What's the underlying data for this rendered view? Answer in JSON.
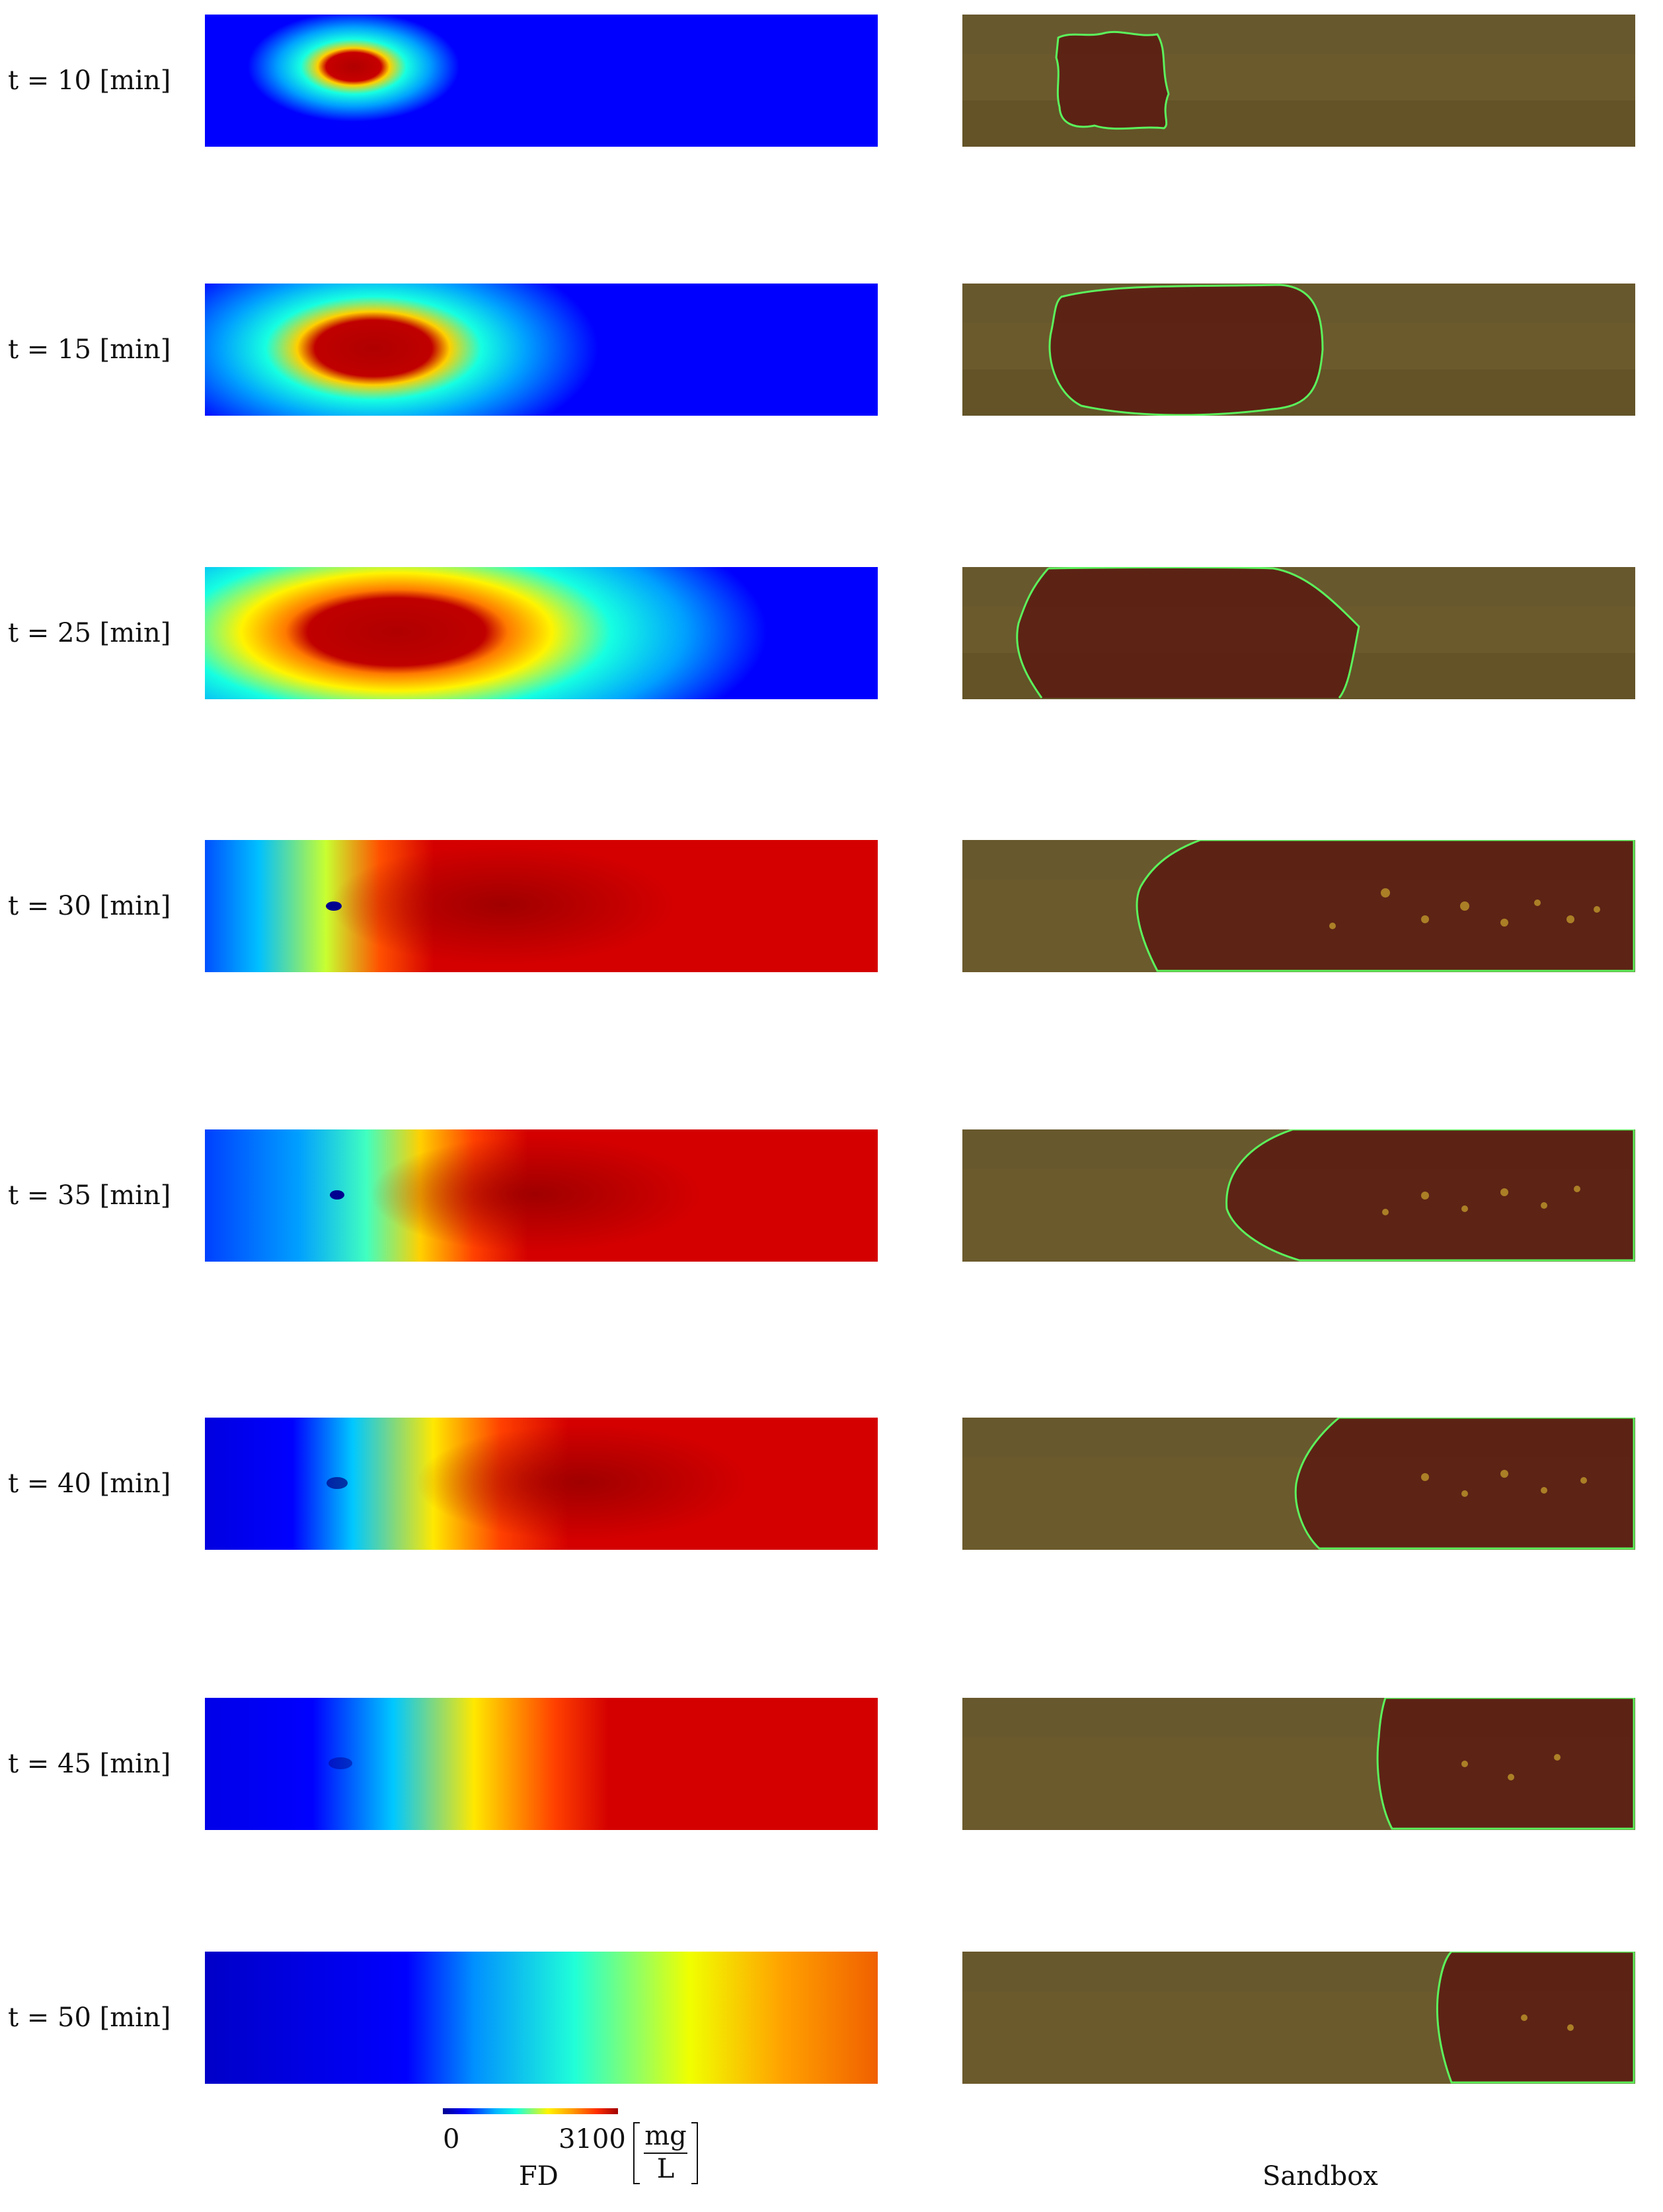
{
  "rows": [
    {
      "label": "t = 10 [min]"
    },
    {
      "label": "t = 15 [min]"
    },
    {
      "label": "t = 25 [min]"
    },
    {
      "label": "t = 30 [min]"
    },
    {
      "label": "t = 35 [min]"
    },
    {
      "label": "t = 40 [min]"
    },
    {
      "label": "t = 45 [min]"
    },
    {
      "label": "t = 50 [min]"
    }
  ],
  "colorbar": {
    "min": "0",
    "max": "3100",
    "unit_numerator": "mg",
    "unit_denominator": "L"
  },
  "captions": {
    "left": "FD",
    "right": "Sandbox"
  },
  "colors": {
    "outline": "#5cf25c",
    "sand": "#6b5a2c",
    "plume": "#5a1a12"
  }
}
